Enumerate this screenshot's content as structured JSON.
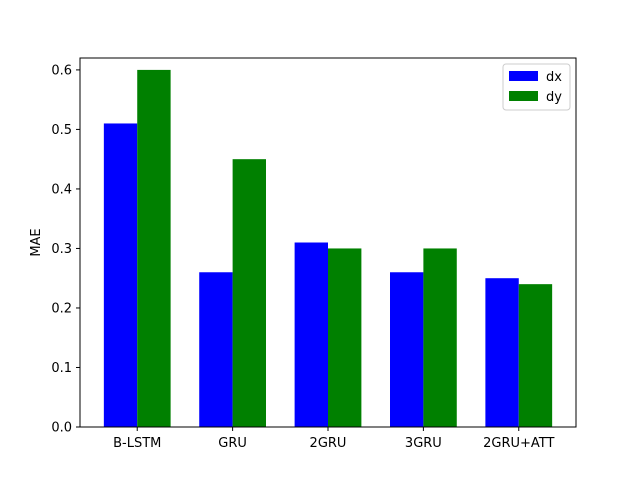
{
  "chart_data": {
    "type": "bar",
    "categories": [
      "B-LSTM",
      "GRU",
      "2GRU",
      "3GRU",
      "2GRU+ATT"
    ],
    "series": [
      {
        "name": "dx",
        "color": "#0000ff",
        "values": [
          0.51,
          0.26,
          0.31,
          0.26,
          0.25
        ]
      },
      {
        "name": "dy",
        "color": "#008000",
        "values": [
          0.6,
          0.45,
          0.3,
          0.3,
          0.24
        ]
      }
    ],
    "xlabel": "",
    "ylabel": "MAE",
    "ylim": [
      0,
      0.62
    ],
    "yticks": [
      "0.0",
      "0.1",
      "0.2",
      "0.3",
      "0.4",
      "0.5",
      "0.6"
    ],
    "grid": false,
    "legend_position": "top-right"
  }
}
